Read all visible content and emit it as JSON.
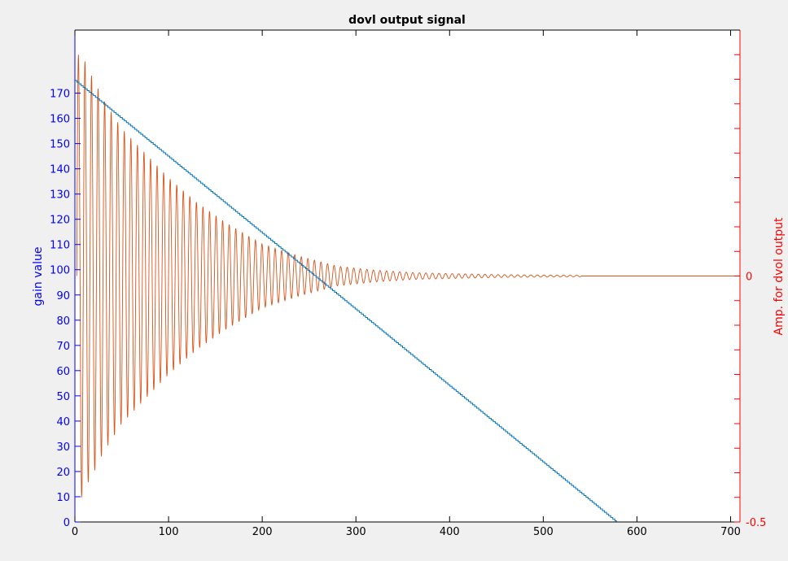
{
  "chart_data": {
    "type": "line",
    "title": "dovl output signal",
    "xlabel": "",
    "xlim": [
      0,
      710
    ],
    "xticks": [
      0,
      100,
      200,
      300,
      400,
      500,
      600,
      700
    ],
    "left_axis": {
      "label": "gain value",
      "ylim": [
        0,
        195
      ],
      "ticks": [
        0,
        10,
        20,
        30,
        40,
        50,
        60,
        70,
        80,
        90,
        100,
        110,
        120,
        130,
        140,
        150,
        160,
        170
      ],
      "color": "#0000ff"
    },
    "right_axis": {
      "label": "Amp. for dvol output",
      "ylim": [
        -0.5,
        0.5
      ],
      "tick_labels": [
        "-0.5",
        "0"
      ],
      "tick_values": [
        -0.5,
        0
      ],
      "minor_ticks": [
        -0.45,
        -0.4,
        -0.35,
        -0.3,
        -0.25,
        -0.2,
        -0.15,
        -0.1,
        -0.05,
        0.05,
        0.1,
        0.15,
        0.2,
        0.25,
        0.3,
        0.35,
        0.4,
        0.45
      ],
      "color": "#ff0000"
    },
    "series": [
      {
        "axis": "left",
        "color": "#0072bd",
        "style": "staircase",
        "points": [
          [
            0,
            175
          ],
          [
            578,
            0
          ],
          [
            700,
            0
          ]
        ]
      },
      {
        "axis": "right",
        "color": "#d95319",
        "style": "decaying-oscillation",
        "x_start": 2,
        "x_end": 710,
        "period": 7,
        "envelope": [
          [
            2,
            0.45
          ],
          [
            8,
            0.45
          ],
          [
            14,
            0.42
          ],
          [
            20,
            0.4
          ],
          [
            30,
            0.36
          ],
          [
            50,
            0.3
          ],
          [
            70,
            0.26
          ],
          [
            100,
            0.2
          ],
          [
            130,
            0.15
          ],
          [
            160,
            0.11
          ],
          [
            200,
            0.065
          ],
          [
            240,
            0.04
          ],
          [
            280,
            0.02
          ],
          [
            320,
            0.012
          ],
          [
            360,
            0.007
          ],
          [
            400,
            0.005
          ],
          [
            450,
            0.003
          ],
          [
            500,
            0.002
          ],
          [
            540,
            0.0015
          ],
          [
            541,
            0
          ],
          [
            710,
            0
          ]
        ]
      }
    ],
    "grid": false,
    "legend": "none"
  }
}
